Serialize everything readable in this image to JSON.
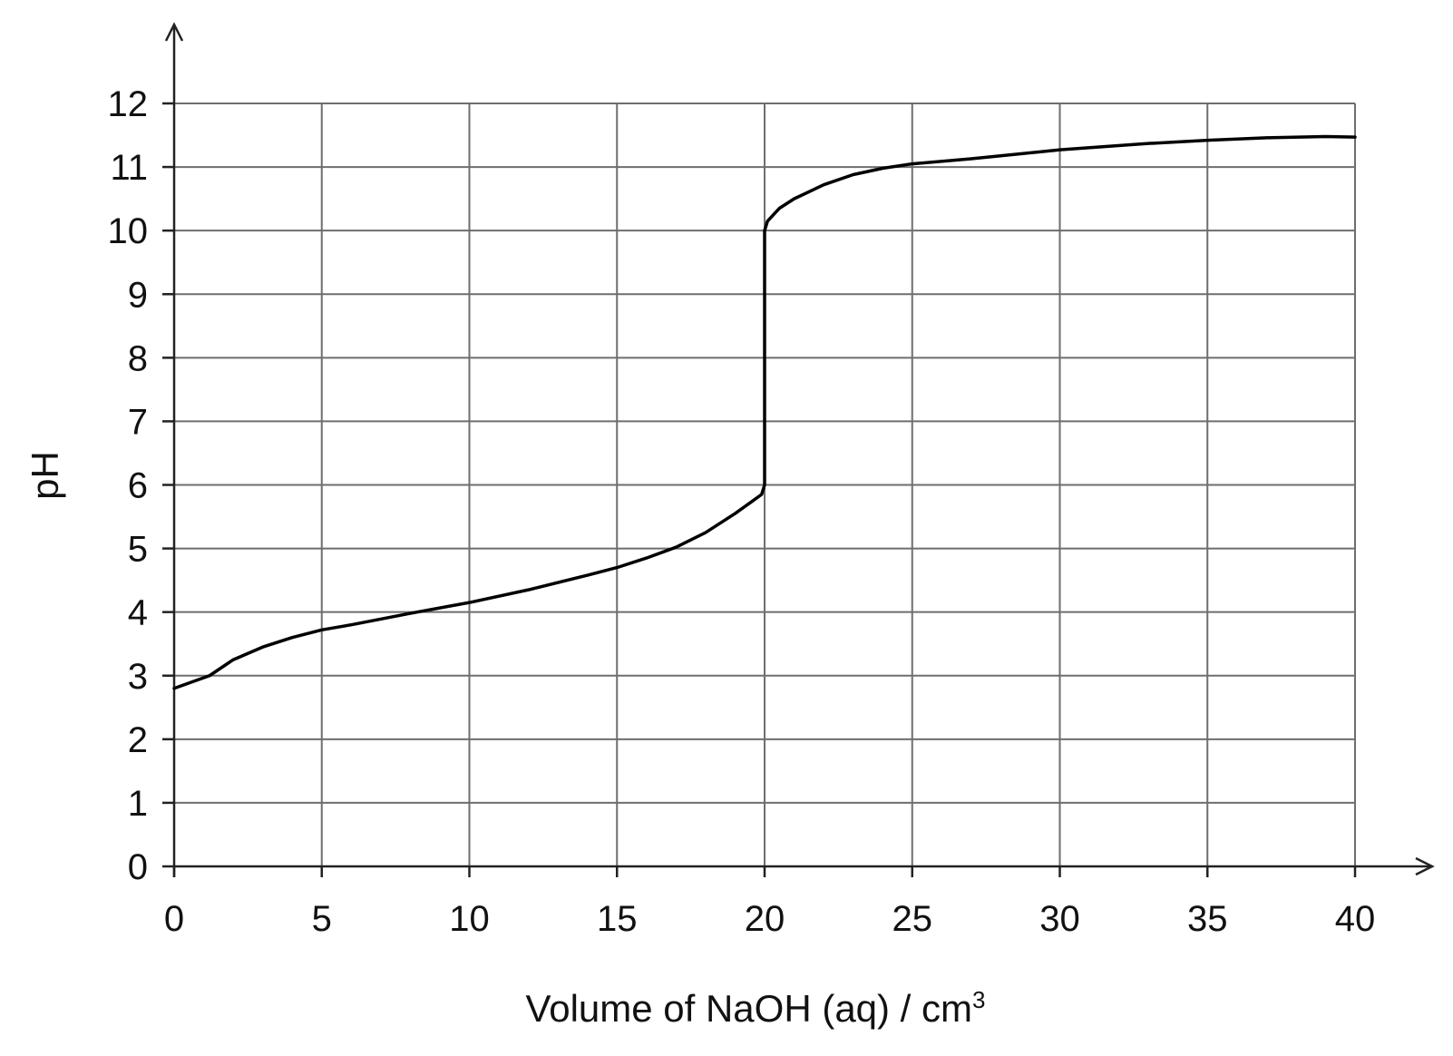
{
  "chart_data": {
    "type": "line",
    "title": "",
    "xlabel": "Volume of NaOH (aq) / cm",
    "xlabel_superscript": "3",
    "ylabel": "pH",
    "xlim": [
      0,
      40
    ],
    "ylim": [
      0,
      12
    ],
    "x_ticks": [
      0,
      5,
      10,
      15,
      20,
      25,
      30,
      35,
      40
    ],
    "y_ticks": [
      0,
      1,
      2,
      3,
      4,
      5,
      6,
      7,
      8,
      9,
      10,
      11,
      12
    ],
    "grid": true,
    "legend": "none",
    "series": [
      {
        "x": [
          0,
          1.2,
          2,
          3,
          4,
          5,
          6,
          8,
          10,
          12,
          14,
          15,
          16,
          17,
          18,
          19,
          19.6,
          19.9,
          20,
          20,
          20.1,
          20.5,
          21,
          22,
          23,
          24,
          25,
          27,
          30,
          33,
          35,
          37,
          39,
          40
        ],
        "y": [
          2.8,
          3.0,
          3.25,
          3.45,
          3.6,
          3.72,
          3.8,
          3.98,
          4.15,
          4.35,
          4.58,
          4.7,
          4.85,
          5.02,
          5.25,
          5.55,
          5.75,
          5.85,
          6.0,
          10.0,
          10.15,
          10.35,
          10.5,
          10.72,
          10.88,
          10.98,
          11.05,
          11.13,
          11.27,
          11.37,
          11.42,
          11.46,
          11.48,
          11.47
        ]
      }
    ],
    "colors": {
      "line": "#000000",
      "grid": "#6e6e6e",
      "axis": "#222222"
    }
  }
}
